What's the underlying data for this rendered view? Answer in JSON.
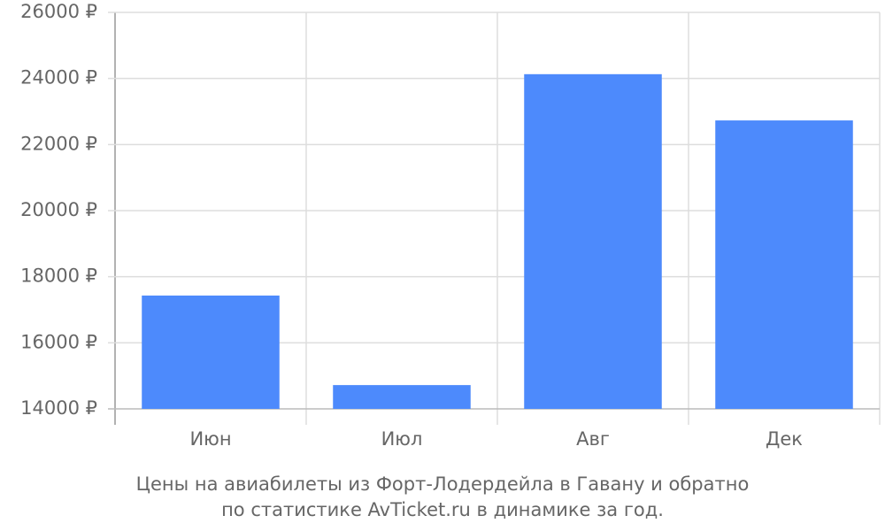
{
  "chart_data": {
    "type": "bar",
    "title": "Цены на авиабилеты из Форт-Лодердейла в Гавану и обратно",
    "subtitle": "по статистике AvTicket.ru в динамике за год.",
    "categories": [
      "Июн",
      "Июл",
      "Авг",
      "Дек"
    ],
    "values": [
      17430,
      14720,
      24130,
      22730
    ],
    "color": "#4d8afc",
    "ylim": [
      14000,
      26000
    ],
    "yticks": [
      {
        "value": 14000,
        "label": "14000 ₽"
      },
      {
        "value": 16000,
        "label": "16000 ₽"
      },
      {
        "value": 18000,
        "label": "18000 ₽"
      },
      {
        "value": 20000,
        "label": "20000 ₽"
      },
      {
        "value": 22000,
        "label": "22000 ₽"
      },
      {
        "value": 24000,
        "label": "24000 ₽"
      },
      {
        "value": 26000,
        "label": "26000 ₽"
      }
    ],
    "grid": true
  }
}
